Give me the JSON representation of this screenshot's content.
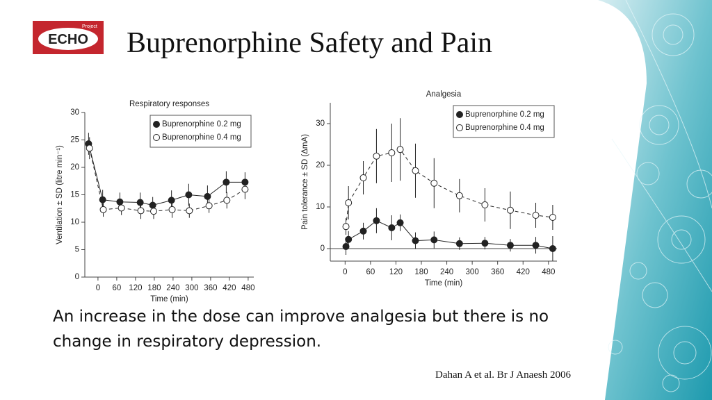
{
  "logo": {
    "small": "Project",
    "main": "ECHO"
  },
  "title": "Buprenorphine Safety and Pain",
  "caption": "An increase in the dose can improve analgesia but there is no change in respiratory depression.",
  "citation": "Dahan A et al. Br J Anaesh 2006",
  "chart_data": [
    {
      "type": "line",
      "title": "Respiratory responses",
      "x_label": "Time (min)",
      "y_label": "Ventilation ± SD (litre min⁻¹)",
      "xlim": [
        -42,
        498
      ],
      "ylim": [
        0,
        30
      ],
      "xticks": [
        0,
        60,
        120,
        180,
        240,
        300,
        360,
        420,
        480
      ],
      "yticks": [
        0,
        5,
        10,
        15,
        20,
        25,
        30
      ],
      "legend": "upper right",
      "series": [
        {
          "name": "Buprenorphine 0.2 mg",
          "color": "#222222",
          "marker": "filled",
          "line": "solid",
          "x": [
            -30,
            15,
            70,
            135,
            175,
            235,
            290,
            350,
            410,
            470
          ],
          "values": [
            24.3,
            14.1,
            13.7,
            13.6,
            13.1,
            14.0,
            15.0,
            14.7,
            17.3,
            17.3
          ],
          "errors": [
            2.0,
            1.8,
            1.7,
            1.8,
            1.5,
            1.8,
            2.0,
            2.0,
            2.0,
            1.8
          ]
        },
        {
          "name": "Buprenorphine 0.4 mg",
          "color": "#222222",
          "marker": "open",
          "line": "dashed",
          "x": [
            -27,
            17,
            75,
            137,
            178,
            237,
            292,
            355,
            412,
            470
          ],
          "values": [
            23.5,
            12.3,
            12.6,
            12.1,
            12.0,
            12.3,
            12.1,
            13.0,
            14.0,
            16.0
          ],
          "errors": [
            2.0,
            1.3,
            1.3,
            1.5,
            1.4,
            1.5,
            1.3,
            1.3,
            1.5,
            1.8
          ]
        }
      ]
    },
    {
      "type": "line",
      "title": "Analgesia",
      "x_label": "Time (min)",
      "y_label": "Pain tolerance ± SD (ΔmA)",
      "xlim": [
        -35,
        500
      ],
      "ylim": [
        -3,
        35
      ],
      "xticks": [
        0,
        60,
        120,
        180,
        240,
        300,
        360,
        420,
        480
      ],
      "yticks": [
        0,
        10,
        20,
        30
      ],
      "hline": 0,
      "legend": "upper right",
      "series": [
        {
          "name": "Buprenorphine 0.2 mg",
          "color": "#222222",
          "marker": "filled",
          "line": "solid",
          "x": [
            2,
            8,
            43,
            74,
            110,
            130,
            166,
            210,
            270,
            330,
            390,
            450,
            490
          ],
          "values": [
            0.5,
            2.2,
            4.2,
            6.7,
            5.0,
            6.2,
            1.9,
            2.1,
            1.2,
            1.3,
            0.8,
            0.8,
            0
          ],
          "errors": [
            2,
            2,
            2,
            3,
            3,
            2,
            2,
            2,
            1.5,
            1.5,
            1.5,
            2,
            3
          ]
        },
        {
          "name": "Buprenorphine 0.4 mg",
          "color": "#222222",
          "marker": "open",
          "line": "dashed",
          "x": [
            2,
            8,
            43,
            74,
            110,
            130,
            166,
            210,
            270,
            330,
            390,
            450,
            490
          ],
          "values": [
            5.3,
            11,
            17,
            22.2,
            23,
            23.8,
            18.7,
            15.7,
            12.7,
            10.5,
            9.2,
            8,
            7.5
          ],
          "errors": [
            2,
            4,
            4,
            6.5,
            7,
            7.5,
            6.5,
            6,
            4,
            4,
            4.5,
            3,
            3
          ]
        }
      ]
    }
  ]
}
